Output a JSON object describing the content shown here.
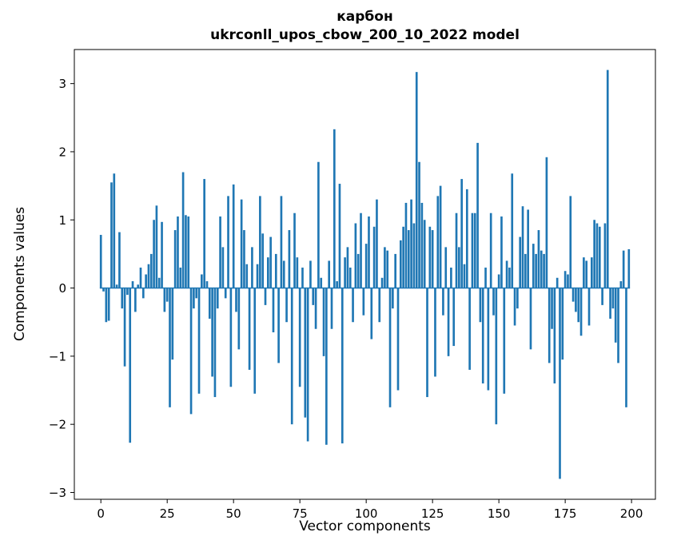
{
  "chart_data": {
    "type": "bar",
    "title": "карбон",
    "subtitle": "ukrconll_upos_cbow_200_10_2022 model",
    "xlabel": "Vector components",
    "ylabel": "Components values",
    "bar_color": "#1f77b4",
    "axis_color": "#000000",
    "xlim": [
      -10,
      209
    ],
    "ylim": [
      -3.1,
      3.5
    ],
    "xticks": [
      0,
      25,
      50,
      75,
      100,
      125,
      150,
      175,
      200
    ],
    "yticks": [
      -3,
      -2,
      -1,
      0,
      1,
      2,
      3
    ],
    "x_start": 0,
    "n_components": 200,
    "values": [
      0.78,
      -0.05,
      -0.5,
      -0.48,
      1.55,
      1.68,
      0.05,
      0.82,
      -0.3,
      -1.15,
      -0.1,
      -2.27,
      0.1,
      -0.35,
      0.05,
      0.3,
      -0.15,
      0.2,
      0.35,
      0.5,
      1.0,
      1.21,
      0.15,
      0.97,
      -0.35,
      -0.2,
      -1.75,
      -1.05,
      0.85,
      1.05,
      0.3,
      1.7,
      1.07,
      1.05,
      -1.85,
      -0.3,
      -0.15,
      -1.55,
      0.2,
      1.6,
      0.1,
      -0.45,
      -1.3,
      -1.6,
      -0.3,
      1.05,
      0.6,
      -0.15,
      1.35,
      -1.45,
      1.52,
      -0.35,
      -0.9,
      1.3,
      0.85,
      0.35,
      -1.2,
      0.6,
      -1.55,
      0.35,
      1.35,
      0.8,
      -0.25,
      0.45,
      0.75,
      -0.65,
      0.5,
      -1.1,
      1.35,
      0.4,
      -0.5,
      0.85,
      -2.0,
      1.1,
      0.45,
      -1.45,
      0.3,
      -1.9,
      -2.25,
      0.4,
      -0.25,
      -0.6,
      1.85,
      0.15,
      -1.0,
      -2.3,
      0.4,
      -0.6,
      2.33,
      0.1,
      1.53,
      -2.28,
      0.45,
      0.6,
      0.3,
      -0.5,
      0.95,
      0.5,
      1.1,
      -0.4,
      0.65,
      1.05,
      -0.75,
      0.9,
      1.3,
      -0.5,
      0.15,
      0.6,
      0.55,
      -1.75,
      -0.3,
      0.5,
      -1.5,
      0.7,
      0.9,
      1.25,
      0.85,
      1.3,
      0.95,
      3.17,
      1.85,
      1.25,
      1.0,
      -1.6,
      0.9,
      0.85,
      -1.3,
      1.35,
      1.5,
      -0.4,
      0.6,
      -1.0,
      0.3,
      -0.85,
      1.1,
      0.6,
      1.6,
      0.35,
      1.45,
      -1.2,
      1.1,
      1.1,
      2.13,
      -0.5,
      -1.4,
      0.3,
      -1.5,
      1.1,
      -0.4,
      -2.0,
      0.2,
      1.05,
      -1.55,
      0.4,
      0.3,
      1.68,
      -0.55,
      -0.3,
      0.75,
      1.2,
      0.5,
      1.15,
      -0.9,
      0.65,
      0.5,
      0.85,
      0.55,
      0.5,
      1.92,
      -1.1,
      -0.6,
      -1.4,
      0.15,
      -2.8,
      -1.05,
      0.25,
      0.2,
      1.35,
      -0.2,
      -0.35,
      -0.5,
      -0.7,
      0.45,
      0.4,
      -0.55,
      0.45,
      1.0,
      0.95,
      0.9,
      -0.25,
      0.95,
      3.2,
      -0.45,
      -0.3,
      -0.8,
      -1.1,
      0.1,
      0.55,
      -1.75,
      0.57
    ]
  }
}
